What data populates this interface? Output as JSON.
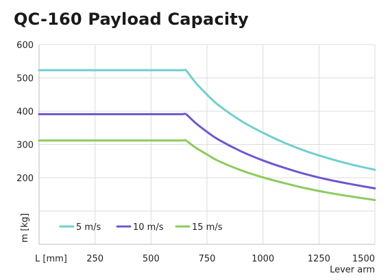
{
  "chart_data": {
    "type": "line",
    "title": "QC-160 Payload Capacity",
    "xlabel": "Lever arm",
    "ylabel": "m [kg]",
    "x_axis_note": "L [mm]",
    "xlim": [
      0,
      1500
    ],
    "ylim": [
      0,
      600
    ],
    "xticks": [
      250,
      500,
      750,
      1000,
      1250,
      1500
    ],
    "yticks": [
      200,
      300,
      400,
      500,
      600
    ],
    "grid": true,
    "legend_position": "bottom-left",
    "series": [
      {
        "name": "5 m/s",
        "color": "#6fcfcf",
        "x": [
          0,
          100,
          200,
          300,
          400,
          500,
          600,
          640,
          650,
          660,
          700,
          750,
          800,
          900,
          1000,
          1100,
          1200,
          1300,
          1400,
          1500
        ],
        "y": [
          523,
          523,
          523,
          523,
          523,
          523,
          523,
          523,
          524,
          520,
          485,
          450,
          419,
          372,
          335,
          304,
          278,
          257,
          239,
          224
        ]
      },
      {
        "name": "10 m/s",
        "color": "#7054d0",
        "x": [
          0,
          100,
          200,
          300,
          400,
          500,
          600,
          640,
          650,
          660,
          700,
          750,
          800,
          900,
          1000,
          1100,
          1200,
          1300,
          1400,
          1500
        ],
        "y": [
          391,
          391,
          391,
          391,
          391,
          391,
          391,
          391,
          392,
          389,
          364,
          338,
          315,
          280,
          252,
          229,
          209,
          193,
          180,
          168
        ]
      },
      {
        "name": "15 m/s",
        "color": "#8cca5c",
        "x": [
          0,
          100,
          200,
          300,
          400,
          500,
          600,
          640,
          650,
          660,
          700,
          750,
          800,
          900,
          1000,
          1100,
          1200,
          1300,
          1400,
          1500
        ],
        "y": [
          312,
          312,
          312,
          312,
          312,
          312,
          312,
          312,
          313,
          310,
          290,
          270,
          251,
          223,
          201,
          183,
          167,
          154,
          143,
          133
        ]
      }
    ]
  }
}
